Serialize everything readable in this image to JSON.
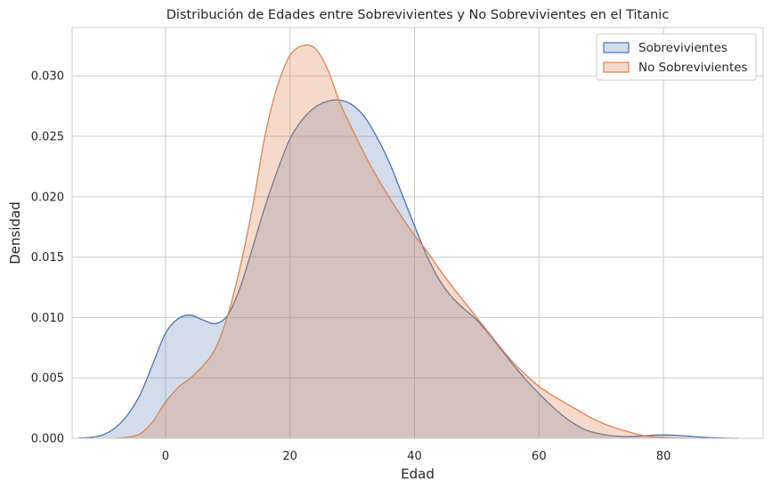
{
  "chart_data": {
    "type": "area",
    "title": "Distribución de Edades entre Sobrevivientes y No Sobrevivientes en el Titanic",
    "xlabel": "Edad",
    "ylabel": "Densidad",
    "xlim": [
      -15,
      96
    ],
    "ylim": [
      0,
      0.034
    ],
    "xticks": [
      0,
      20,
      40,
      60,
      80
    ],
    "yticks": [
      0.0,
      0.005,
      0.01,
      0.015,
      0.02,
      0.025,
      0.03
    ],
    "grid": true,
    "legend_position": "top-right",
    "series": [
      {
        "name": "Sobrevivientes",
        "color": "#4c72b0",
        "x": [
          -14,
          -12,
          -10,
          -8,
          -6,
          -4,
          -2,
          0,
          2,
          4,
          6,
          8,
          10,
          12,
          14,
          16,
          18,
          20,
          22,
          24,
          26,
          28,
          30,
          32,
          34,
          36,
          38,
          40,
          42,
          44,
          46,
          48,
          50,
          52,
          54,
          56,
          58,
          60,
          62,
          64,
          66,
          68,
          70,
          72,
          74,
          76,
          78,
          80,
          82,
          84,
          86,
          88,
          90,
          92
        ],
        "values": [
          2e-05,
          8e-05,
          0.0003,
          0.0009,
          0.002,
          0.0037,
          0.0062,
          0.0087,
          0.0099,
          0.0102,
          0.0098,
          0.0095,
          0.0102,
          0.0125,
          0.0158,
          0.0192,
          0.0222,
          0.0248,
          0.0264,
          0.0274,
          0.0279,
          0.028,
          0.0276,
          0.0266,
          0.0249,
          0.0228,
          0.0202,
          0.0176,
          0.0151,
          0.0131,
          0.0117,
          0.0107,
          0.0098,
          0.0086,
          0.0073,
          0.006,
          0.0048,
          0.0037,
          0.0027,
          0.0018,
          0.0011,
          0.0006,
          0.00035,
          0.0002,
          0.00015,
          0.00018,
          0.00025,
          0.00028,
          0.00025,
          0.00018,
          0.0001,
          5e-05,
          2e-05,
          0.0
        ],
        "fill_opacity": 0.25
      },
      {
        "name": "No Sobrevivientes",
        "color": "#dd8452",
        "x": [
          -8,
          -6,
          -4,
          -2,
          0,
          2,
          4,
          6,
          8,
          10,
          12,
          14,
          16,
          18,
          20,
          22,
          24,
          26,
          28,
          30,
          32,
          34,
          36,
          38,
          40,
          42,
          44,
          46,
          48,
          50,
          52,
          54,
          56,
          58,
          60,
          62,
          64,
          66,
          68,
          70,
          72,
          74,
          76,
          78,
          80,
          82,
          84
        ],
        "values": [
          0.0,
          0.0001,
          0.0004,
          0.0014,
          0.003,
          0.0042,
          0.005,
          0.006,
          0.0074,
          0.0102,
          0.0142,
          0.0192,
          0.0251,
          0.0292,
          0.0317,
          0.0325,
          0.0323,
          0.0306,
          0.0278,
          0.0256,
          0.0235,
          0.0216,
          0.0199,
          0.0183,
          0.0168,
          0.0155,
          0.014,
          0.0126,
          0.0113,
          0.01,
          0.0087,
          0.0074,
          0.0062,
          0.0052,
          0.0043,
          0.0036,
          0.003,
          0.0024,
          0.0018,
          0.0013,
          0.0009,
          0.0006,
          0.0003,
          0.00015,
          7e-05,
          2e-05,
          0.0
        ],
        "fill_opacity": 0.3
      }
    ]
  }
}
